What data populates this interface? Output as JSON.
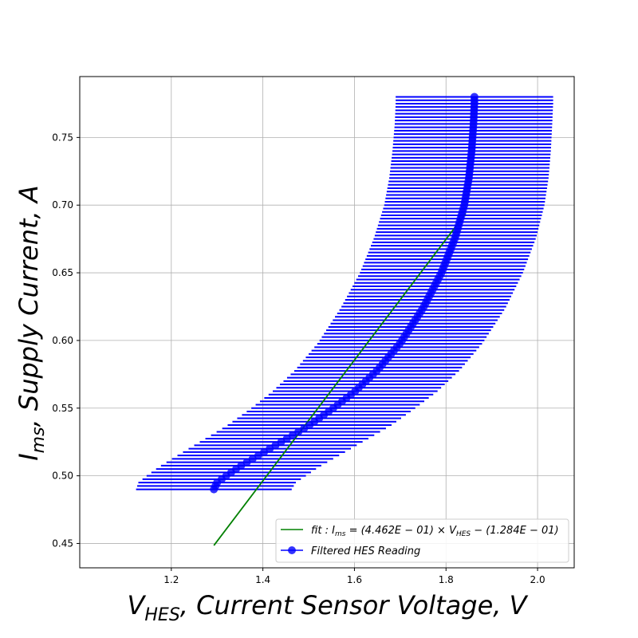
{
  "chart_data": {
    "type": "scatter",
    "title": "",
    "xlabel": {
      "main": "V",
      "sub": "HES",
      "rest": ",  Current Sensor Voltage,  V"
    },
    "ylabel": {
      "main": "I",
      "sub": "ms",
      "rest": ",  Supply Current,  A"
    },
    "xlim": [
      1.0,
      2.08
    ],
    "ylim": [
      0.432,
      0.795
    ],
    "xticks": [
      1.2,
      1.4,
      1.6,
      1.8,
      2.0
    ],
    "xtick_labels": [
      "1.2",
      "1.4",
      "1.6",
      "1.8",
      "2.0"
    ],
    "yticks": [
      0.45,
      0.5,
      0.55,
      0.6,
      0.65,
      0.7,
      0.75
    ],
    "ytick_labels": [
      "0.45",
      "0.50",
      "0.55",
      "0.60",
      "0.65",
      "0.70",
      "0.75"
    ],
    "grid": true,
    "legend": {
      "placement": "lower-right",
      "entries": [
        {
          "kind": "line",
          "color": "#008000",
          "label": "fit :  I_ms = (4.462E − 01) × V_HES − (1.284E − 01)",
          "parts": [
            {
              "t": "fit : ",
              "s": "n"
            },
            {
              "t": "I",
              "s": "n"
            },
            {
              "t": "ms",
              "s": "sub"
            },
            {
              "t": " = (4.462",
              "s": "n"
            },
            {
              "t": "E",
              "s": "n"
            },
            {
              "t": " − 01) × ",
              "s": "n"
            },
            {
              "t": "V",
              "s": "n"
            },
            {
              "t": "HES",
              "s": "sub"
            },
            {
              "t": " − (1.284",
              "s": "n"
            },
            {
              "t": "E",
              "s": "n"
            },
            {
              "t": " − 01)",
              "s": "n"
            }
          ]
        },
        {
          "kind": "point",
          "color": "#0000ff",
          "label": "Filtered HES Reading"
        }
      ]
    },
    "fit_line": {
      "name": "fit",
      "color": "#008000",
      "slope": 0.4462,
      "intercept": -0.1284,
      "x": [
        1.293,
        1.843
      ]
    },
    "series": [
      {
        "name": "Filtered HES Reading",
        "color": "#0000ff",
        "x": [
          1.293,
          1.3,
          1.32,
          1.35,
          1.4,
          1.45,
          1.5,
          1.55,
          1.6,
          1.65,
          1.7,
          1.75,
          1.79,
          1.82,
          1.84,
          1.85,
          1.856,
          1.86,
          1.862,
          1.862
        ],
        "y": [
          0.49,
          0.495,
          0.5,
          0.507,
          0.517,
          0.527,
          0.537,
          0.549,
          0.562,
          0.578,
          0.598,
          0.624,
          0.65,
          0.676,
          0.7,
          0.72,
          0.74,
          0.76,
          0.775,
          0.782
        ],
        "xerr": [
          0.17,
          0.172,
          0.174,
          0.175,
          0.177,
          0.178,
          0.179,
          0.179,
          0.18,
          0.18,
          0.18,
          0.18,
          0.178,
          0.177,
          0.175,
          0.174,
          0.173,
          0.172,
          0.172,
          0.172
        ]
      }
    ]
  }
}
